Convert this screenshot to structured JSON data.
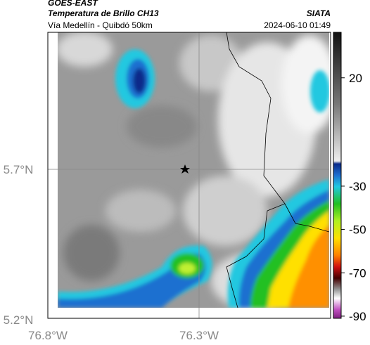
{
  "header": {
    "title": "GOES-EAST",
    "subtitle": "Temperatura de Brillo CH13",
    "location": "Vía Medellín - Quibdó 50km",
    "org": "SIATA",
    "datetime": "2024-06-10 01:49"
  },
  "axes": {
    "lat_ticks": [
      "5.7°N",
      "5.2°N"
    ],
    "lon_ticks": [
      "76.8°W",
      "76.3°W"
    ]
  },
  "colorbar": {
    "clim": [
      -91,
      41
    ],
    "ticks": [
      20,
      -30,
      -50,
      -70,
      -90
    ]
  }
}
